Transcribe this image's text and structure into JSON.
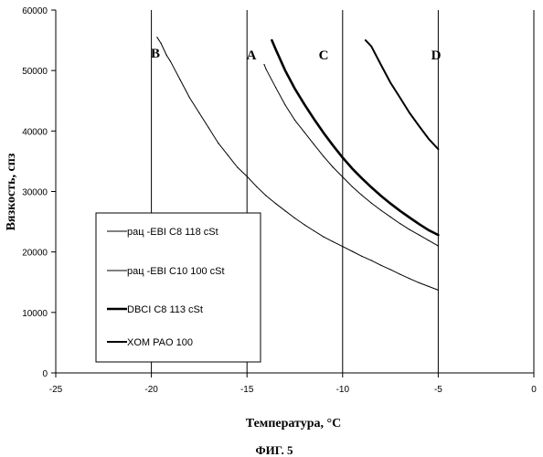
{
  "chart_data": {
    "type": "line",
    "title": "",
    "xlabel": "Температура, °C",
    "ylabel": "Вязкость, спз",
    "caption": "ФИГ. 5",
    "xlim": [
      -25,
      0
    ],
    "ylim": [
      0,
      60000
    ],
    "x_ticks": [
      "-25",
      "-20",
      "-15",
      "-10",
      "-5",
      "0"
    ],
    "y_ticks": [
      "0",
      "10000",
      "20000",
      "30000",
      "40000",
      "50000",
      "60000"
    ],
    "grid": "vertical",
    "legend_position": "lower-left",
    "series": [
      {
        "name": "рац -EBI C8 118 cSt",
        "curve_label": "B",
        "line_width": 1,
        "x": [
          -19.7,
          -19.5,
          -19.2,
          -19.0,
          -18.5,
          -18.0,
          -17.5,
          -17.0,
          -16.5,
          -16.0,
          -15.5,
          -15.0,
          -14.5,
          -14.0,
          -13.5,
          -13.0,
          -12.5,
          -12.0,
          -11.5,
          -11.0,
          -10.5,
          -10.0,
          -9.5,
          -9.0,
          -8.5,
          -8.0,
          -7.5,
          -7.0,
          -6.5,
          -6.0,
          -5.5,
          -5.0
        ],
        "y": [
          55500,
          54500,
          52500,
          51500,
          48500,
          45500,
          43000,
          40500,
          38000,
          36000,
          34000,
          32500,
          30800,
          29300,
          28000,
          26800,
          25600,
          24500,
          23500,
          22500,
          21700,
          20900,
          20100,
          19300,
          18600,
          17800,
          17100,
          16300,
          15600,
          14900,
          14300,
          13700
        ]
      },
      {
        "name": "рац -EBI C10 100 cSt",
        "curve_label": "A",
        "line_width": 1,
        "x": [
          -14.1,
          -14.0,
          -13.5,
          -13.0,
          -12.5,
          -12.0,
          -11.5,
          -11.0,
          -10.5,
          -10.0,
          -9.5,
          -9.0,
          -8.5,
          -8.0,
          -7.5,
          -7.0,
          -6.5,
          -6.0,
          -5.5,
          -5.0
        ],
        "y": [
          51000,
          50200,
          47200,
          44300,
          41800,
          39800,
          37800,
          35800,
          34000,
          32400,
          30800,
          29400,
          28100,
          26900,
          25800,
          24700,
          23700,
          22800,
          21900,
          21000
        ]
      },
      {
        "name": "DBCI C8 113 cSt",
        "curve_label": "C",
        "line_width": 2.6,
        "x": [
          -13.7,
          -13.5,
          -13.0,
          -12.5,
          -12.0,
          -11.5,
          -11.0,
          -10.5,
          -10.0,
          -9.5,
          -9.0,
          -8.5,
          -8.0,
          -7.5,
          -7.0,
          -6.5,
          -6.0,
          -5.5,
          -5.0
        ],
        "y": [
          55000,
          53500,
          50000,
          47000,
          44400,
          42000,
          39700,
          37600,
          35600,
          33800,
          32200,
          30700,
          29300,
          28000,
          26800,
          25700,
          24600,
          23600,
          22800
        ]
      },
      {
        "name": "XOM PAO 100",
        "curve_label": "D",
        "line_width": 2,
        "x": [
          -8.8,
          -8.5,
          -8.0,
          -7.5,
          -7.0,
          -6.5,
          -6.0,
          -5.5,
          -5.0
        ],
        "y": [
          55000,
          54000,
          51000,
          48000,
          45500,
          43000,
          40800,
          38700,
          37000
        ]
      }
    ]
  }
}
